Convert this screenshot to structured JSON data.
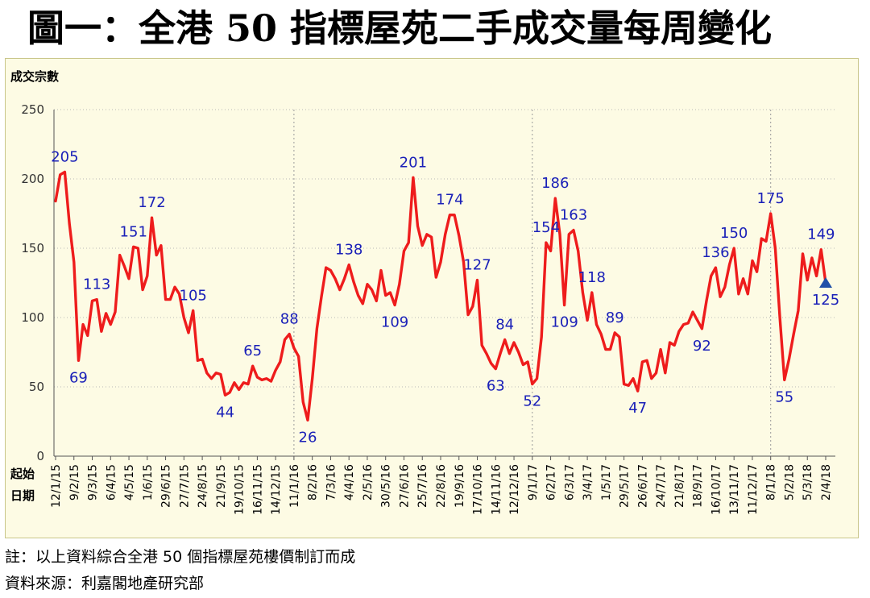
{
  "title": "圖一：全港 50 指標屋苑二手成交量每周變化",
  "footnotes": {
    "note": "註：以上資料綜合全港 50 個指標屋苑樓價制訂而成",
    "source": "資料來源：利嘉閣地產研究部"
  },
  "chart_data": {
    "type": "line",
    "ylabel": "成交宗數",
    "xlabel_lines": [
      "起始",
      "日期"
    ],
    "ylim": [
      0,
      250
    ],
    "yticks": [
      0,
      50,
      100,
      150,
      200,
      250
    ],
    "grid": "horizontal dotted",
    "line_color": "#ee1c1c",
    "label_color": "#1a20b8",
    "marker_color": "#1f4fa8",
    "x_tick_labels": [
      "12/1/15",
      "9/2/15",
      "9/3/15",
      "6/4/15",
      "4/5/15",
      "1/6/15",
      "29/6/15",
      "27/7/15",
      "24/8/15",
      "21/9/15",
      "19/10/15",
      "16/11/15",
      "14/12/15",
      "11/1/16",
      "8/2/16",
      "7/3/16",
      "4/4/16",
      "2/5/16",
      "30/5/16",
      "27/6/16",
      "25/7/16",
      "22/8/16",
      "19/9/16",
      "17/10/16",
      "14/11/16",
      "12/12/16",
      "9/1/17",
      "6/2/17",
      "6/3/17",
      "3/4/17",
      "1/5/17",
      "29/5/17",
      "26/6/17",
      "24/7/17",
      "21/8/17",
      "18/9/17",
      "16/10/17",
      "13/11/17",
      "11/12/17",
      "8/1/18",
      "5/2/18",
      "5/3/18",
      "2/4/18"
    ],
    "year_separators_at_tick": [
      13,
      26,
      39
    ],
    "series": [
      {
        "values": [
          184,
          203,
          205,
          168,
          140,
          69,
          95,
          87,
          112,
          113,
          90,
          103,
          95,
          104,
          145,
          137,
          128,
          151,
          150,
          120,
          130,
          172,
          145,
          152,
          113,
          113,
          122,
          117,
          100,
          89,
          105,
          69,
          70,
          60,
          56,
          60,
          59,
          44,
          46,
          53,
          48,
          53,
          52,
          65,
          57,
          55,
          56,
          54,
          62,
          68,
          84,
          88,
          78,
          72,
          39,
          26,
          56,
          92,
          115,
          136,
          134,
          128,
          120,
          128,
          138,
          126,
          116,
          110,
          124,
          120,
          112,
          134,
          116,
          118,
          109,
          124,
          148,
          154,
          201,
          166,
          152,
          160,
          158,
          129,
          140,
          160,
          174,
          174,
          159,
          140,
          102,
          108,
          127,
          80,
          74,
          67,
          63,
          74,
          84,
          74,
          82,
          75,
          66,
          68,
          52,
          56,
          86,
          154,
          148,
          186,
          160,
          109,
          160,
          163,
          148,
          118,
          98,
          118,
          95,
          88,
          77,
          77,
          89,
          86,
          52,
          51,
          56,
          47,
          68,
          69,
          56,
          60,
          77,
          60,
          82,
          80,
          90,
          95,
          96,
          104,
          98,
          92,
          112,
          130,
          136,
          115,
          122,
          138,
          150,
          117,
          128,
          117,
          141,
          133,
          157,
          155,
          175,
          150,
          100,
          55,
          70,
          88,
          105,
          146,
          127,
          143,
          130,
          149,
          125
        ],
        "labels": [
          {
            "index": 2,
            "text": "205",
            "pos": "above"
          },
          {
            "index": 5,
            "text": "69",
            "pos": "below"
          },
          {
            "index": 9,
            "text": "113",
            "pos": "above"
          },
          {
            "index": 17,
            "text": "151",
            "pos": "above"
          },
          {
            "index": 21,
            "text": "172",
            "pos": "above"
          },
          {
            "index": 30,
            "text": "105",
            "pos": "above"
          },
          {
            "index": 37,
            "text": "44",
            "pos": "below"
          },
          {
            "index": 43,
            "text": "65",
            "pos": "above"
          },
          {
            "index": 51,
            "text": "88",
            "pos": "above"
          },
          {
            "index": 55,
            "text": "26",
            "pos": "below"
          },
          {
            "index": 64,
            "text": "138",
            "pos": "above"
          },
          {
            "index": 74,
            "text": "109",
            "pos": "below"
          },
          {
            "index": 78,
            "text": "201",
            "pos": "above"
          },
          {
            "index": 86,
            "text": "174",
            "pos": "above"
          },
          {
            "index": 92,
            "text": "127",
            "pos": "above"
          },
          {
            "index": 96,
            "text": "63",
            "pos": "below"
          },
          {
            "index": 98,
            "text": "84",
            "pos": "above"
          },
          {
            "index": 104,
            "text": "52",
            "pos": "below"
          },
          {
            "index": 107,
            "text": "154",
            "pos": "above"
          },
          {
            "index": 109,
            "text": "186",
            "pos": "above"
          },
          {
            "index": 111,
            "text": "109",
            "pos": "below"
          },
          {
            "index": 113,
            "text": "163",
            "pos": "above"
          },
          {
            "index": 117,
            "text": "118",
            "pos": "above"
          },
          {
            "index": 122,
            "text": "89",
            "pos": "above"
          },
          {
            "index": 127,
            "text": "47",
            "pos": "below"
          },
          {
            "index": 141,
            "text": "92",
            "pos": "below"
          },
          {
            "index": 144,
            "text": "136",
            "pos": "above"
          },
          {
            "index": 148,
            "text": "150",
            "pos": "above"
          },
          {
            "index": 156,
            "text": "175",
            "pos": "above"
          },
          {
            "index": 159,
            "text": "55",
            "pos": "below"
          },
          {
            "index": 167,
            "text": "149",
            "pos": "above"
          },
          {
            "index": 168,
            "text": "125",
            "pos": "below"
          }
        ]
      }
    ]
  }
}
